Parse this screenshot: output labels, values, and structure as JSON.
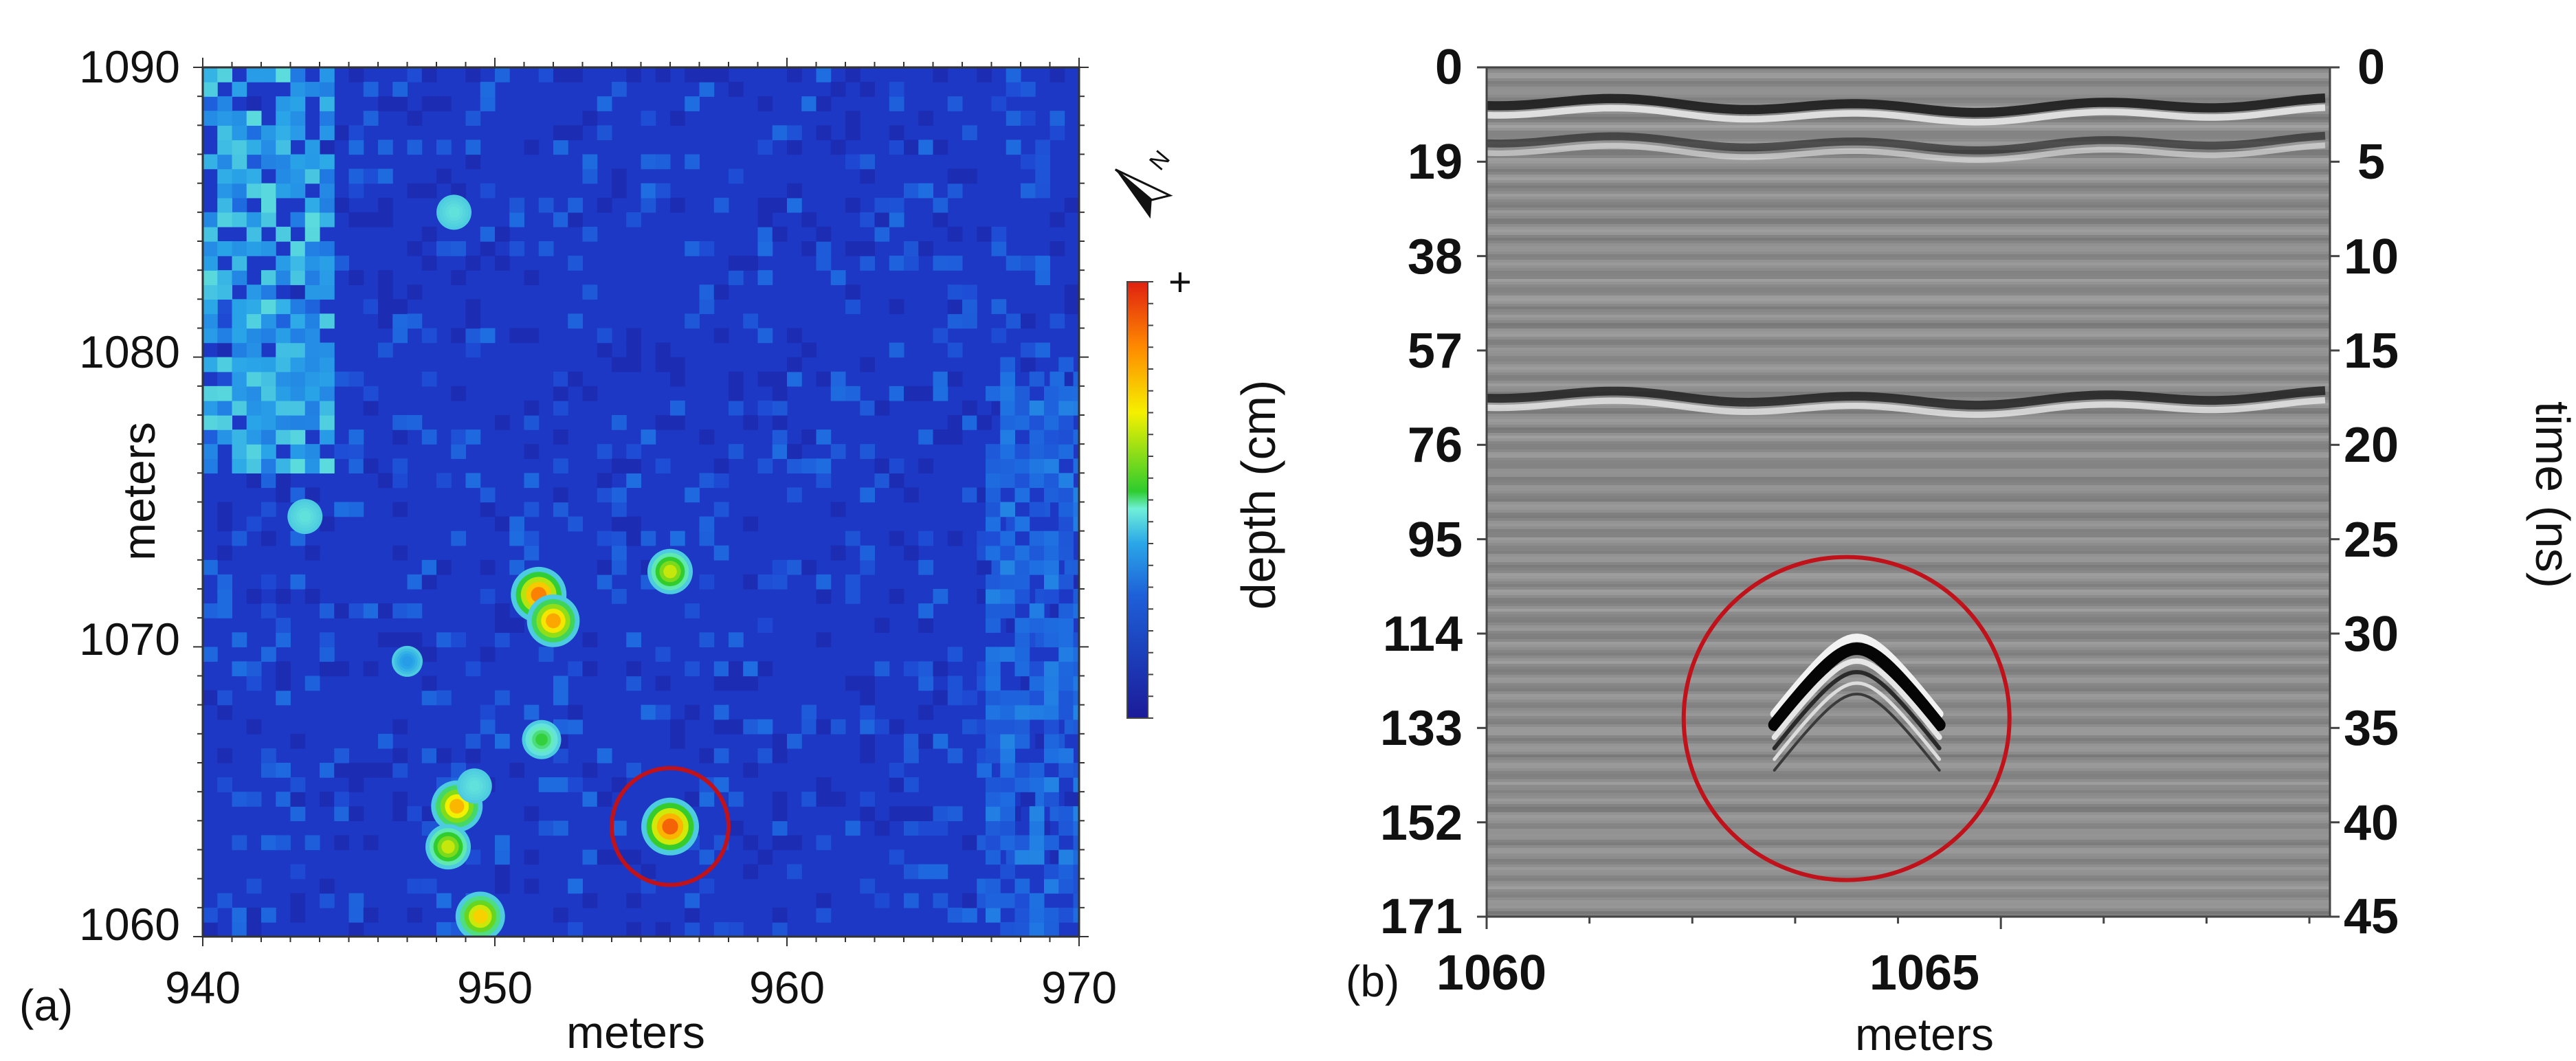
{
  "colors": {
    "map_background": "#1e3fcf",
    "marker_circle": "#c0121a",
    "radargram_base": "#8c8c8c",
    "colorbar_stops": [
      "#1b1b9a",
      "#1e5fd8",
      "#2aa6e8",
      "#6ff0d8",
      "#2ecc2e",
      "#f5f000",
      "#ff8a00",
      "#e02010"
    ]
  },
  "chart_data": [
    {
      "type": "heatmap",
      "panel_label": "(a)",
      "xlabel": "meters",
      "ylabel": "meters",
      "xlim": [
        940,
        970
      ],
      "ylim": [
        1060,
        1090
      ],
      "xticks": [
        "940",
        "950",
        "960",
        "970"
      ],
      "yticks": [
        "1060",
        "1070",
        "1080",
        "1090"
      ],
      "colorbar": {
        "max_label": "+",
        "colormap": "jet"
      },
      "north_arrow": {
        "icon": "north-arrow-icon",
        "label": "N"
      },
      "background_intensity": 0.12,
      "bright_zones": [
        {
          "x": [
            940.0,
            944.5
          ],
          "y": [
            1076.0,
            1090.0
          ],
          "intensity": 0.38
        },
        {
          "x": [
            966.8,
            970.0
          ],
          "y": [
            1060.0,
            1080.0
          ],
          "intensity": 0.26
        }
      ],
      "anomalies": [
        {
          "x": 956.0,
          "y": 1072.6,
          "intensity": 0.7
        },
        {
          "x": 951.5,
          "y": 1071.8,
          "intensity": 0.95
        },
        {
          "x": 952.0,
          "y": 1070.9,
          "intensity": 0.88
        },
        {
          "x": 951.6,
          "y": 1066.8,
          "intensity": 0.55
        },
        {
          "x": 948.7,
          "y": 1064.5,
          "intensity": 0.85
        },
        {
          "x": 949.3,
          "y": 1065.2,
          "intensity": 0.45
        },
        {
          "x": 948.4,
          "y": 1063.1,
          "intensity": 0.7
        },
        {
          "x": 949.5,
          "y": 1060.7,
          "intensity": 0.8
        },
        {
          "x": 956.0,
          "y": 1063.8,
          "intensity": 1.0
        },
        {
          "x": 947.0,
          "y": 1069.5,
          "intensity": 0.35
        },
        {
          "x": 943.5,
          "y": 1074.5,
          "intensity": 0.45
        },
        {
          "x": 948.6,
          "y": 1085.0,
          "intensity": 0.45
        }
      ],
      "highlight": {
        "x": 956.0,
        "y": 1063.8,
        "radius_m": 2.0
      }
    },
    {
      "type": "heatmap",
      "subtype": "radargram",
      "panel_label": "(b)",
      "xlabel": "meters",
      "ylabel": "depth (cm)",
      "y2label": "time (ns)",
      "xlim": [
        1060,
        1068.2
      ],
      "xticks": [
        "1060",
        "1065"
      ],
      "depth_ticks": [
        "0",
        "19",
        "38",
        "57",
        "76",
        "95",
        "114",
        "133",
        "152",
        "171"
      ],
      "time_ticks": [
        "0",
        "5",
        "10",
        "15",
        "20",
        "25",
        "30",
        "35",
        "40",
        "45"
      ],
      "depth_range_cm": [
        0,
        171
      ],
      "time_range_ns": [
        0,
        45
      ],
      "reflectors": [
        {
          "time_ns": 2.0,
          "strength": 0.9
        },
        {
          "time_ns": 4.0,
          "strength": 0.6
        },
        {
          "time_ns": 17.5,
          "strength": 0.8
        }
      ],
      "hyperbola": {
        "x": 1063.6,
        "apex_time_ns": 30.8
      },
      "highlight": {
        "x": 1063.5,
        "time_ns": 34.5
      }
    }
  ]
}
